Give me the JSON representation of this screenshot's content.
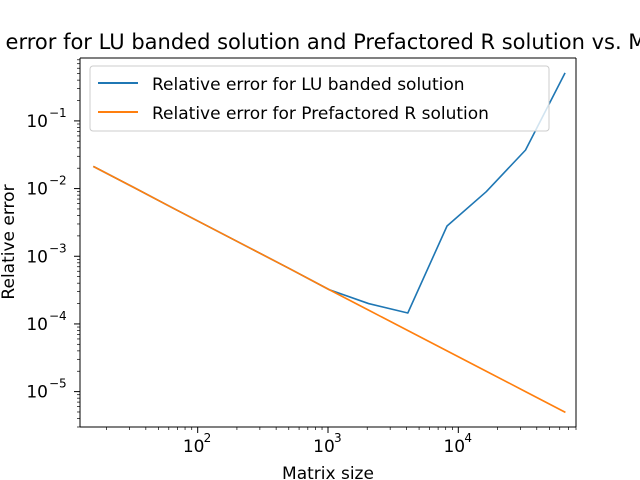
{
  "chart_data": {
    "type": "line",
    "title": "Relative error for LU banded solution and Prefactored R solution vs. Matrix size",
    "xlabel": "Matrix size",
    "ylabel": "Relative error",
    "xscale": "log",
    "yscale": "log",
    "xlim": [
      12.5,
      80000
    ],
    "ylim": [
      3e-06,
      0.85
    ],
    "grid": false,
    "legend_position": "top-left",
    "x_ticks": [
      {
        "value": 100,
        "base": "10",
        "exp": "2"
      },
      {
        "value": 1000,
        "base": "10",
        "exp": "3"
      },
      {
        "value": 10000,
        "base": "10",
        "exp": "4"
      }
    ],
    "y_ticks": [
      {
        "value": 1e-05,
        "base": "10",
        "exp": "−5"
      },
      {
        "value": 0.0001,
        "base": "10",
        "exp": "−4"
      },
      {
        "value": 0.001,
        "base": "10",
        "exp": "−3"
      },
      {
        "value": 0.01,
        "base": "10",
        "exp": "−2"
      },
      {
        "value": 0.1,
        "base": "10",
        "exp": "−1"
      }
    ],
    "series": [
      {
        "name": "Relative error for LU banded solution",
        "color": "#1f77b4",
        "x": [
          16,
          32,
          64,
          128,
          256,
          512,
          1024,
          2048,
          4096,
          8192,
          16384,
          32768,
          65536
        ],
        "y": [
          0.021,
          0.0105,
          0.0052,
          0.0026,
          0.0013,
          0.00065,
          0.00032,
          0.0002,
          0.000145,
          0.0028,
          0.009,
          0.037,
          0.5
        ]
      },
      {
        "name": "Relative error for Prefactored R solution",
        "color": "#ff7f0e",
        "x": [
          16,
          32,
          64,
          128,
          256,
          512,
          1024,
          2048,
          4096,
          8192,
          16384,
          32768,
          65536
        ],
        "y": [
          0.021,
          0.0105,
          0.0052,
          0.0026,
          0.0013,
          0.00065,
          0.00032,
          0.00016,
          8e-05,
          4e-05,
          2e-05,
          1e-05,
          5e-06
        ]
      }
    ]
  }
}
